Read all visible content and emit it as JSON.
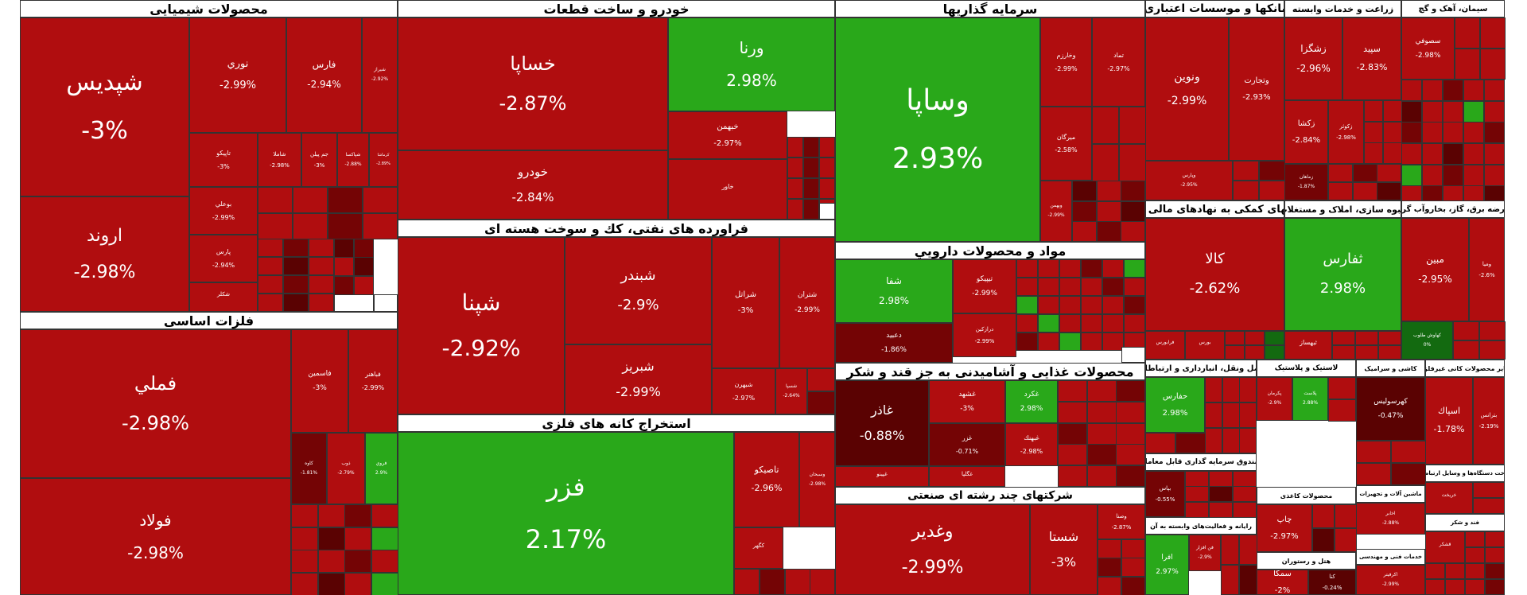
{
  "colors": {
    "negative": "#b00d0f",
    "dark_negative": "#740405",
    "darker_negative": "#5a0202",
    "positive": "#29a81a",
    "dark_positive": "#136a10"
  },
  "chart_data": {
    "type": "treemap",
    "title": "",
    "sectors": [
      {
        "name": "محصولات شیمیایی",
        "stocks": [
          {
            "symbol": "شپديس",
            "change": "-3%"
          },
          {
            "symbol": "اروند",
            "change": "-2.98%"
          },
          {
            "symbol": "نوري",
            "change": "-2.99%"
          },
          {
            "symbol": "فارس",
            "change": "-2.94%"
          },
          {
            "symbol": "شيراز",
            "change": "-2.92%"
          },
          {
            "symbol": "تاپيكو",
            "change": "-3%"
          },
          {
            "symbol": "شاملا",
            "change": "-2.98%"
          },
          {
            "symbol": "جم پيلن",
            "change": "-3%"
          },
          {
            "symbol": "شپاكسا",
            "change": "-2.88%"
          },
          {
            "symbol": "كرماشا",
            "change": "-2.89%"
          },
          {
            "symbol": "بوعلي",
            "change": "-2.99%"
          },
          {
            "symbol": "پارس",
            "change": "-2.94%"
          },
          {
            "symbol": "شكلر",
            "change": ""
          }
        ]
      },
      {
        "name": "خودرو و ساخت قطعات",
        "stocks": [
          {
            "symbol": "خساپا",
            "change": "-2.87%"
          },
          {
            "symbol": "خودرو",
            "change": "-2.84%"
          },
          {
            "symbol": "ورنا",
            "change": "2.98%"
          },
          {
            "symbol": "خبهمن",
            "change": "-2.97%"
          },
          {
            "symbol": "خاور",
            "change": ""
          }
        ]
      },
      {
        "name": "سرمایه گذاریها",
        "stocks": [
          {
            "symbol": "وساپا",
            "change": "2.93%"
          },
          {
            "symbol": "وخارزم",
            "change": "-2.99%"
          },
          {
            "symbol": "تماد",
            "change": "-2.97%"
          },
          {
            "symbol": "ميرگان",
            "change": "-2.58%"
          },
          {
            "symbol": "وبهمن",
            "change": "-2.99%"
          }
        ]
      },
      {
        "name": "بانکها و موسسات اعتباری",
        "stocks": [
          {
            "symbol": "ونوين",
            "change": "-2.99%"
          },
          {
            "symbol": "وتجارت",
            "change": "-2.93%"
          },
          {
            "symbol": "وپارس",
            "change": "-2.95%"
          }
        ]
      },
      {
        "name": "زراعت و خدمات وابسته",
        "stocks": [
          {
            "symbol": "زشگزا",
            "change": "-2.96%"
          },
          {
            "symbol": "سپيد",
            "change": "-2.83%"
          },
          {
            "symbol": "زكشا",
            "change": "-2.84%"
          },
          {
            "symbol": "زكوثر",
            "change": "-2.98%"
          },
          {
            "symbol": "زماهان",
            "change": "-1.87%"
          }
        ]
      },
      {
        "name": "سیمان، آهک و گچ",
        "stocks": [
          {
            "symbol": "سصوفي",
            "change": "-2.98%"
          }
        ]
      },
      {
        "name": "فراورده های نفتی، كك و سوخت هسته ای",
        "stocks": [
          {
            "symbol": "شپنا",
            "change": "-2.92%"
          },
          {
            "symbol": "شبندر",
            "change": "-2.9%"
          },
          {
            "symbol": "شبريز",
            "change": "-2.99%"
          },
          {
            "symbol": "شراتل",
            "change": "-3%"
          },
          {
            "symbol": "شتران",
            "change": "-2.99%"
          },
          {
            "symbol": "شبهرن",
            "change": "-2.97%"
          },
          {
            "symbol": "شسپا",
            "change": "-2.64%"
          }
        ]
      },
      {
        "name": "فلزات اساسی",
        "stocks": [
          {
            "symbol": "فملي",
            "change": "-2.98%"
          },
          {
            "symbol": "فولاد",
            "change": "-2.98%"
          },
          {
            "symbol": "فاسمين",
            "change": "-3%"
          },
          {
            "symbol": "فباهنر",
            "change": "-2.99%"
          },
          {
            "symbol": "كاوه",
            "change": "-1.81%"
          },
          {
            "symbol": "ذوب",
            "change": "-2.79%"
          },
          {
            "symbol": "فروي",
            "change": "2.9%"
          }
        ]
      },
      {
        "name": "مواد و محصولات دارويي",
        "stocks": [
          {
            "symbol": "شفا",
            "change": "2.98%"
          },
          {
            "symbol": "تيپيكو",
            "change": "-2.99%"
          },
          {
            "symbol": "دعبيد",
            "change": "-1.86%"
          },
          {
            "symbol": "درازكين",
            "change": "-2.99%"
          }
        ]
      },
      {
        "name": "استخراج کانه های فلزی",
        "stocks": [
          {
            "symbol": "فزر",
            "change": "2.17%"
          },
          {
            "symbol": "تاصيكو",
            "change": "-2.96%"
          },
          {
            "symbol": "وسبحان",
            "change": "-2.98%"
          },
          {
            "symbol": "كگهر",
            "change": ""
          }
        ]
      },
      {
        "name": "محصولات غذایی و آشامیدنی به جز قند و شکر",
        "stocks": [
          {
            "symbol": "غاذر",
            "change": "-0.88%"
          },
          {
            "symbol": "غشهد",
            "change": "-3%"
          },
          {
            "symbol": "غكرد",
            "change": "2.98%"
          },
          {
            "symbol": "غزر",
            "change": "-0.71%"
          },
          {
            "symbol": "غبهنك",
            "change": "-2.98%"
          },
          {
            "symbol": "غپينو",
            "change": ""
          },
          {
            "symbol": "غگلپا",
            "change": ""
          }
        ]
      },
      {
        "name": "شرکتهای چند رشته ای صنعتی",
        "stocks": [
          {
            "symbol": "وغدير",
            "change": "-2.99%"
          },
          {
            "symbol": "شستا",
            "change": "-3%"
          },
          {
            "symbol": "وصنا",
            "change": "-2.87%"
          }
        ]
      },
      {
        "name": "فعالیتهای کمکی به نهادهای مالی واسط",
        "stocks": [
          {
            "symbol": "كالا",
            "change": "-2.62%"
          },
          {
            "symbol": "فرابورس",
            "change": ""
          },
          {
            "symbol": "بورس",
            "change": ""
          }
        ]
      },
      {
        "name": "انبوه سازی، املاک و مستغلات",
        "stocks": [
          {
            "symbol": "ثفارس",
            "change": "2.98%"
          },
          {
            "symbol": "ثبهساز",
            "change": ""
          }
        ]
      },
      {
        "name": "عرضه برق، گاز، بخاروآب گرم",
        "stocks": [
          {
            "symbol": "مبين",
            "change": "-2.95%"
          },
          {
            "symbol": "وميا",
            "change": "-2.6%"
          },
          {
            "symbol": "كهاوش طلوب",
            "change": "0%"
          }
        ]
      },
      {
        "name": "حمل ونقل، انبارداری و ارتباطات",
        "stocks": [
          {
            "symbol": "حفارس",
            "change": "2.98%"
          }
        ]
      },
      {
        "name": "لاستیک و پلاستیک",
        "stocks": [
          {
            "symbol": "پكرمان",
            "change": "-2.9%"
          },
          {
            "symbol": "پلاست",
            "change": "2.88%"
          }
        ]
      },
      {
        "name": "کاشی و سرامیک",
        "stocks": [
          {
            "symbol": "كهرسوليس",
            "change": "-0.47%"
          }
        ]
      },
      {
        "name": "رایانه و فعالیت‌های وابسته به آن",
        "stocks": [
          {
            "symbol": "اسپاك",
            "change": "-1.78%"
          },
          {
            "symbol": "افرا",
            "change": "2.97%"
          },
          {
            "symbol": "فن افزار",
            "change": "-2.9%"
          }
        ]
      },
      {
        "name": "سایر محصولات کانی غیرفلزی",
        "stocks": [
          {
            "symbol": "بترانس",
            "change": "-2.19%"
          }
        ]
      },
      {
        "name": "صندوق سرمایه گذاری قابل معامله",
        "stocks": [
          {
            "symbol": "بپاس",
            "change": "-0.55%"
          }
        ]
      },
      {
        "name": "محصولات کاغذی",
        "stocks": [
          {
            "symbol": "چاپ",
            "change": "-2.97%"
          }
        ]
      },
      {
        "name": "هتل و رستوران",
        "stocks": [
          {
            "symbol": "سمگا",
            "change": "-2%"
          },
          {
            "symbol": "كنا",
            "change": "-0.24%"
          }
        ]
      },
      {
        "name": "ماشین آلات و تجهیزات",
        "stocks": [
          {
            "symbol": "اخابر",
            "change": "-2.88%"
          }
        ]
      },
      {
        "name": "ساخت دستگاه‌ها و وسایل ارتباطی",
        "stocks": [
          {
            "symbol": "خريخت",
            "change": ""
          }
        ]
      },
      {
        "name": "خدمات فنی و مهندسی",
        "stocks": [
          {
            "symbol": "اكرفيتر",
            "change": "-2.99%"
          }
        ]
      },
      {
        "name": "فند و شکر",
        "stocks": [
          {
            "symbol": "قشكر",
            "change": ""
          }
        ]
      }
    ]
  }
}
